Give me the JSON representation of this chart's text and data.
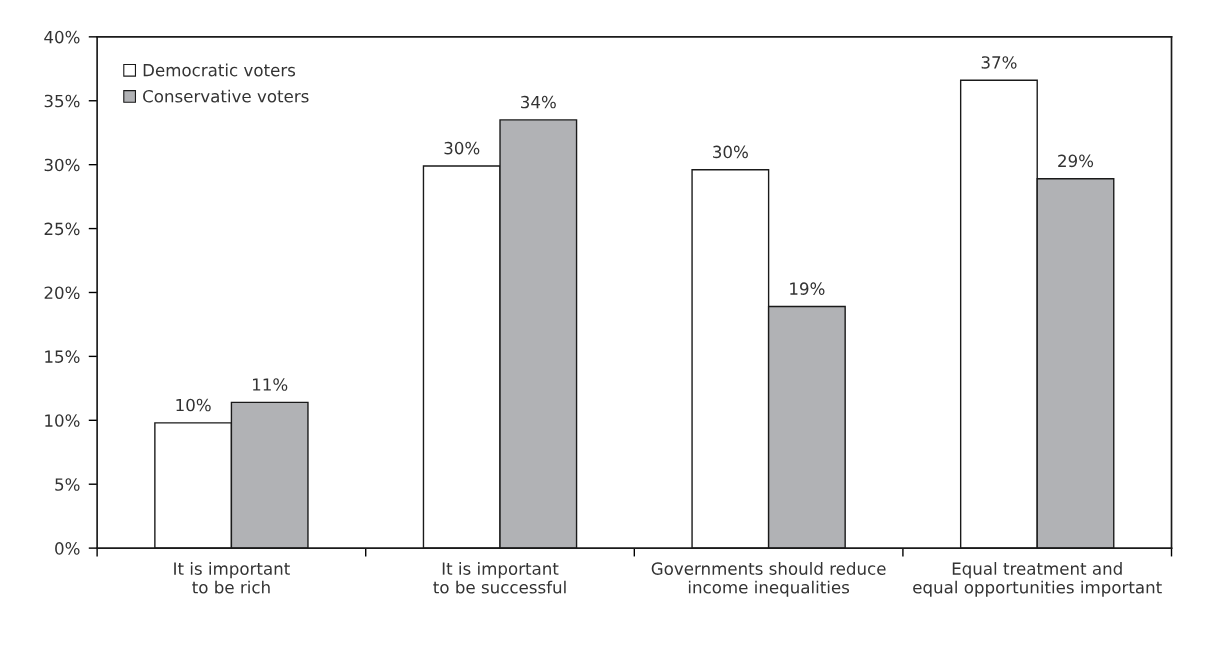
{
  "chart_data": {
    "type": "bar",
    "categories": [
      "It is important\nto be rich",
      "It is important\nto be successful",
      "Governments should reduce\nincome inequalities",
      "Equal treatment and\nequal opportunities important"
    ],
    "series": [
      {
        "name": "Democratic voters",
        "color": "#ffffff",
        "values": [
          9.8,
          29.9,
          29.6,
          36.6
        ],
        "value_labels": [
          "10%",
          "30%",
          "30%",
          "37%"
        ]
      },
      {
        "name": "Conservative voters",
        "color": "#b1b2b5",
        "values": [
          11.4,
          33.5,
          18.9,
          28.9
        ],
        "value_labels": [
          "11%",
          "34%",
          "19%",
          "29%"
        ]
      }
    ],
    "ylim": [
      0,
      40
    ],
    "yticks": [
      {
        "value": 0,
        "label": "0%"
      },
      {
        "value": 5,
        "label": "5%"
      },
      {
        "value": 10,
        "label": "10%"
      },
      {
        "value": 15,
        "label": "15%"
      },
      {
        "value": 20,
        "label": "20%"
      },
      {
        "value": 25,
        "label": "25%"
      },
      {
        "value": 30,
        "label": "30%"
      },
      {
        "value": 35,
        "label": "35%"
      },
      {
        "value": 40,
        "label": "40%"
      }
    ],
    "legend": "top left",
    "grid": false
  }
}
